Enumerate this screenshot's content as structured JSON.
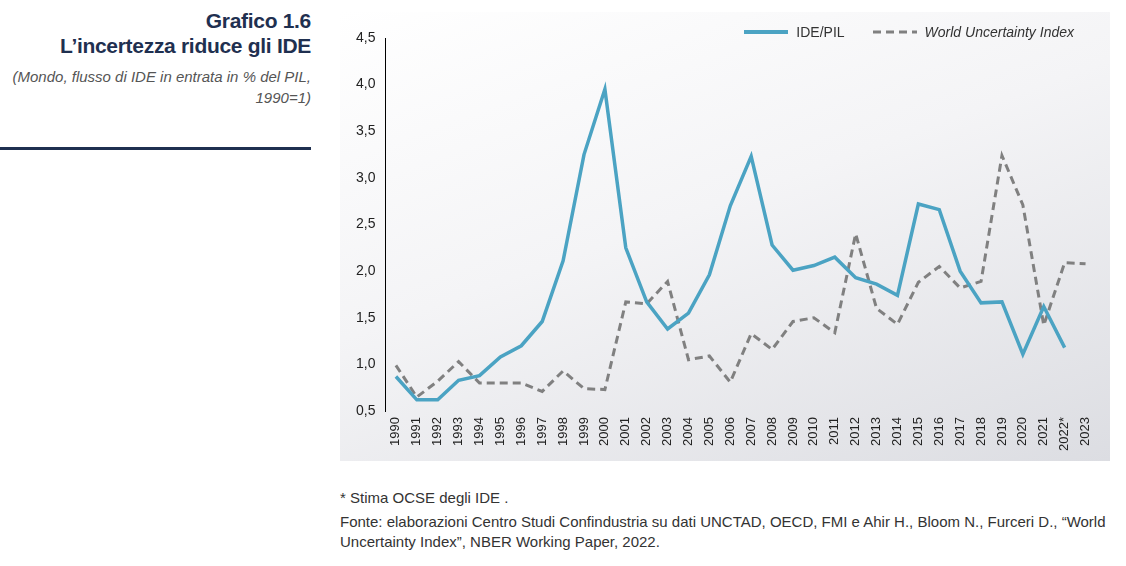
{
  "chart_data": {
    "type": "line",
    "title": [
      "Grafico 1.6",
      "L’incertezza riduce gli IDE"
    ],
    "subtitle": "(Mondo, flusso di IDE in entrata in % del PIL, 1990=1)",
    "notes": [
      "* Stima OCSE degli IDE .",
      "Fonte: elaborazioni Centro Studi Confindustria su dati UNCTAD, OECD, FMI e Ahir H., Bloom N., Furceri D., “World Uncertainty Index”, NBER Working Paper, 2022."
    ],
    "categories": [
      "1990",
      "1991",
      "1992",
      "1993",
      "1994",
      "1995",
      "1996",
      "1997",
      "1998",
      "1999",
      "2000",
      "2001",
      "2002",
      "2003",
      "2004",
      "2005",
      "2006",
      "2007",
      "2008",
      "2009",
      "2010",
      "2011",
      "2012",
      "2013",
      "2014",
      "2015",
      "2016",
      "2017",
      "2018",
      "2019",
      "2020",
      "2021",
      "2022*",
      "2023"
    ],
    "series": [
      {
        "name": "IDE/PIL",
        "color": "#4ba3c3",
        "line_style": "solid",
        "values": [
          0.87,
          0.62,
          0.62,
          0.83,
          0.88,
          1.08,
          1.2,
          1.46,
          2.11,
          3.25,
          3.95,
          2.25,
          1.67,
          1.38,
          1.55,
          1.96,
          2.7,
          3.23,
          2.28,
          2.01,
          2.06,
          2.15,
          1.93,
          1.86,
          1.74,
          2.72,
          2.66,
          2.0,
          1.66,
          1.67,
          1.11,
          1.62,
          1.18,
          null
        ]
      },
      {
        "name": "World Uncertainty Index",
        "color": "#808080",
        "line_style": "dashed",
        "values": [
          0.99,
          0.65,
          0.82,
          1.03,
          0.8,
          0.8,
          0.8,
          0.71,
          0.93,
          0.74,
          0.73,
          1.67,
          1.65,
          1.89,
          1.05,
          1.09,
          0.81,
          1.33,
          1.16,
          1.46,
          1.5,
          1.34,
          2.4,
          1.6,
          1.43,
          1.88,
          2.05,
          1.82,
          1.89,
          3.24,
          2.71,
          1.42,
          2.09,
          2.08
        ]
      }
    ],
    "ylim": [
      0.5,
      4.5
    ],
    "yticks": [
      {
        "value": 0.5,
        "label": "0,5"
      },
      {
        "value": 1,
        "label": "1,0"
      },
      {
        "value": 1.5,
        "label": "1,5"
      },
      {
        "value": 2,
        "label": "2,0"
      },
      {
        "value": 2.5,
        "label": "2,5"
      },
      {
        "value": 3,
        "label": "3,0"
      },
      {
        "value": 3.5,
        "label": "3,5"
      },
      {
        "value": 4,
        "label": "4,0"
      },
      {
        "value": 4.5,
        "label": "4,5"
      }
    ],
    "grid": false,
    "legend": "top-right"
  }
}
